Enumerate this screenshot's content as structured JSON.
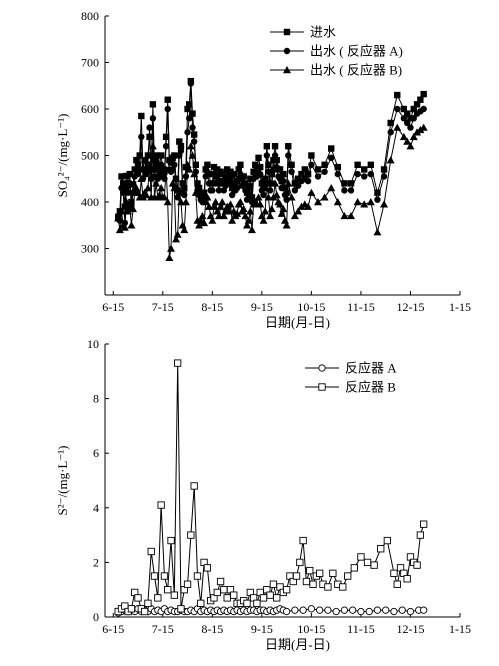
{
  "chart_data": [
    {
      "type": "line",
      "xlabel": "日期(月-日)",
      "ylabel": "SO₄²⁻/(mg·L⁻¹)",
      "ylim": [
        200,
        800
      ],
      "yticks": [
        300,
        400,
        500,
        600,
        700,
        800
      ],
      "xticks": [
        "6-15",
        "7-15",
        "8-15",
        "9-15",
        "10-15",
        "11-15",
        "12-15",
        "1-15"
      ],
      "legend_position": "top-right",
      "series": [
        {
          "name": "进水",
          "marker": "square-filled",
          "x": [
            3,
            4,
            5,
            6,
            7,
            8,
            9,
            10,
            11,
            12,
            13,
            14,
            15,
            16,
            17,
            18,
            19,
            20,
            21,
            22,
            23,
            24,
            25,
            26,
            27,
            28,
            29,
            30,
            31,
            32,
            33,
            34,
            35,
            36,
            37,
            38,
            39,
            40,
            41,
            42,
            43,
            44,
            45,
            46,
            47,
            48,
            49,
            50,
            51,
            52,
            53,
            54,
            55,
            56,
            57,
            58,
            59,
            60,
            61,
            62,
            63,
            64,
            65,
            66,
            67,
            68,
            69,
            70,
            71,
            72,
            73,
            74,
            75,
            76,
            77,
            78,
            79,
            80,
            81,
            82,
            83,
            84,
            85,
            86,
            87,
            88,
            89,
            90,
            91,
            92,
            93,
            94,
            95,
            96,
            97,
            98,
            99,
            100,
            101,
            102,
            103,
            104,
            105,
            106,
            108,
            110,
            112,
            114,
            116,
            118,
            120,
            124,
            128,
            132,
            136,
            140,
            144,
            148,
            152,
            156,
            160,
            164,
            168,
            172,
            176,
            178,
            180,
            182,
            184,
            186,
            188
          ],
          "values": [
            368,
            380,
            455,
            440,
            390,
            456,
            440,
            460,
            400,
            438,
            470,
            490,
            480,
            500,
            585,
            470,
            490,
            470,
            500,
            540,
            470,
            610,
            470,
            500,
            470,
            480,
            500,
            470,
            465,
            540,
            620,
            490,
            485,
            495,
            500,
            450,
            425,
            530,
            520,
            440,
            430,
            475,
            600,
            610,
            660,
            590,
            545,
            480,
            440,
            430,
            420,
            410,
            420,
            470,
            480,
            460,
            440,
            440,
            475,
            455,
            470,
            440,
            465,
            460,
            440,
            450,
            470,
            460,
            465,
            430,
            460,
            440,
            445,
            470,
            480,
            450,
            455,
            440,
            420,
            430,
            450,
            410,
            465,
            480,
            470,
            495,
            475,
            440,
            430,
            450,
            520,
            480,
            440,
            460,
            490,
            520,
            490,
            470,
            470,
            445,
            460,
            430,
            420,
            520,
            480,
            440,
            450,
            460,
            470,
            460,
            500,
            470,
            480,
            515,
            475,
            440,
            440,
            480,
            470,
            480,
            420,
            470,
            570,
            630,
            600,
            590,
            580,
            600,
            610,
            620,
            632
          ]
        },
        {
          "name": "出水 ( 反应器 A)",
          "marker": "circle-filled",
          "x": [
            3,
            4,
            5,
            6,
            7,
            8,
            9,
            10,
            11,
            12,
            13,
            14,
            15,
            16,
            17,
            18,
            19,
            20,
            21,
            22,
            23,
            24,
            25,
            26,
            27,
            28,
            29,
            30,
            31,
            32,
            33,
            34,
            35,
            36,
            37,
            38,
            39,
            40,
            41,
            42,
            43,
            44,
            45,
            46,
            47,
            48,
            49,
            50,
            51,
            52,
            53,
            54,
            55,
            56,
            57,
            58,
            59,
            60,
            61,
            62,
            63,
            64,
            65,
            66,
            67,
            68,
            69,
            70,
            71,
            72,
            73,
            74,
            75,
            76,
            77,
            78,
            79,
            80,
            81,
            82,
            83,
            84,
            85,
            86,
            87,
            88,
            89,
            90,
            91,
            92,
            93,
            94,
            95,
            96,
            97,
            98,
            99,
            100,
            101,
            102,
            103,
            104,
            105,
            106,
            108,
            110,
            112,
            114,
            116,
            118,
            120,
            124,
            128,
            132,
            136,
            140,
            144,
            148,
            152,
            156,
            160,
            164,
            168,
            172,
            176,
            178,
            180,
            182,
            184,
            186,
            188
          ],
          "values": [
            370,
            360,
            430,
            420,
            355,
            430,
            420,
            440,
            390,
            420,
            455,
            470,
            460,
            470,
            540,
            450,
            470,
            460,
            480,
            560,
            450,
            580,
            455,
            490,
            450,
            460,
            480,
            455,
            450,
            520,
            600,
            470,
            465,
            470,
            480,
            430,
            410,
            500,
            510,
            420,
            415,
            455,
            550,
            580,
            655,
            560,
            530,
            465,
            425,
            415,
            405,
            400,
            410,
            455,
            465,
            440,
            425,
            425,
            460,
            440,
            455,
            425,
            445,
            445,
            425,
            435,
            455,
            440,
            450,
            415,
            440,
            425,
            430,
            450,
            460,
            435,
            440,
            425,
            405,
            415,
            435,
            400,
            450,
            460,
            455,
            475,
            460,
            425,
            415,
            435,
            500,
            465,
            425,
            440,
            470,
            500,
            475,
            455,
            450,
            430,
            445,
            415,
            405,
            500,
            465,
            425,
            435,
            445,
            450,
            445,
            480,
            455,
            465,
            495,
            460,
            425,
            425,
            460,
            455,
            460,
            405,
            455,
            550,
            600,
            580,
            570,
            560,
            580,
            590,
            595,
            600
          ]
        },
        {
          "name": "出水 ( 反应器 B)",
          "marker": "triangle-filled",
          "x": [
            3,
            4,
            5,
            6,
            7,
            8,
            9,
            10,
            11,
            12,
            13,
            14,
            15,
            16,
            17,
            18,
            19,
            20,
            21,
            22,
            23,
            24,
            25,
            26,
            27,
            28,
            29,
            30,
            31,
            32,
            33,
            34,
            35,
            36,
            37,
            38,
            39,
            40,
            41,
            42,
            43,
            44,
            45,
            46,
            47,
            48,
            49,
            50,
            51,
            52,
            53,
            54,
            55,
            56,
            57,
            58,
            59,
            60,
            61,
            62,
            63,
            64,
            65,
            66,
            67,
            68,
            69,
            70,
            71,
            72,
            73,
            74,
            75,
            76,
            77,
            78,
            79,
            80,
            81,
            82,
            83,
            84,
            85,
            86,
            87,
            88,
            89,
            90,
            91,
            92,
            93,
            94,
            95,
            96,
            97,
            98,
            99,
            100,
            101,
            102,
            103,
            104,
            105,
            106,
            108,
            110,
            112,
            114,
            116,
            118,
            120,
            124,
            128,
            132,
            136,
            140,
            144,
            148,
            152,
            156,
            160,
            164,
            168,
            172,
            176,
            178,
            180,
            182,
            184,
            186,
            188
          ],
          "values": [
            365,
            340,
            380,
            350,
            345,
            400,
            380,
            390,
            350,
            385,
            420,
            430,
            420,
            410,
            450,
            410,
            420,
            415,
            430,
            480,
            410,
            520,
            410,
            440,
            410,
            415,
            430,
            410,
            410,
            470,
            400,
            280,
            300,
            440,
            430,
            320,
            330,
            420,
            400,
            350,
            340,
            400,
            480,
            470,
            520,
            500,
            460,
            420,
            360,
            350,
            360,
            370,
            355,
            400,
            410,
            390,
            370,
            360,
            390,
            400,
            380,
            370,
            390,
            400,
            370,
            380,
            390,
            380,
            395,
            360,
            380,
            370,
            375,
            395,
            400,
            380,
            385,
            370,
            350,
            360,
            380,
            340,
            395,
            400,
            395,
            410,
            395,
            370,
            360,
            380,
            440,
            410,
            370,
            385,
            410,
            440,
            415,
            400,
            395,
            375,
            385,
            360,
            350,
            440,
            410,
            370,
            380,
            390,
            395,
            390,
            420,
            400,
            410,
            430,
            400,
            370,
            370,
            400,
            395,
            400,
            335,
            395,
            490,
            560,
            540,
            530,
            520,
            540,
            550,
            555,
            560
          ]
        }
      ]
    },
    {
      "type": "line",
      "xlabel": "日期(月-日)",
      "ylabel": "S²⁻/(mg·L⁻¹)",
      "ylim": [
        0,
        10
      ],
      "yticks": [
        0,
        2,
        4,
        6,
        8,
        10
      ],
      "xticks": [
        "6-15",
        "7-15",
        "8-15",
        "9-15",
        "10-15",
        "11-15",
        "12-15",
        "1-15"
      ],
      "legend_position": "top-right",
      "series": [
        {
          "name": "反应器 A",
          "marker": "circle-open",
          "x": [
            3,
            5,
            7,
            9,
            11,
            13,
            15,
            17,
            19,
            21,
            23,
            25,
            27,
            29,
            31,
            33,
            35,
            37,
            39,
            41,
            43,
            45,
            47,
            49,
            51,
            53,
            55,
            57,
            59,
            61,
            63,
            65,
            67,
            69,
            71,
            73,
            75,
            77,
            79,
            81,
            83,
            85,
            87,
            89,
            91,
            93,
            95,
            97,
            99,
            101,
            103,
            105,
            110,
            115,
            120,
            125,
            130,
            135,
            140,
            145,
            150,
            155,
            160,
            165,
            170,
            175,
            180,
            185,
            188
          ],
          "values": [
            0.15,
            0.2,
            0.25,
            0.2,
            0.25,
            0.2,
            0.3,
            0.2,
            0.25,
            0.2,
            0.3,
            0.2,
            0.25,
            0.2,
            0.3,
            0.2,
            0.25,
            0.2,
            0.2,
            0.25,
            0.2,
            0.2,
            0.25,
            0.2,
            0.3,
            0.2,
            0.25,
            0.2,
            0.25,
            0.2,
            0.25,
            0.2,
            0.25,
            0.2,
            0.25,
            0.2,
            0.25,
            0.2,
            0.25,
            0.2,
            0.25,
            0.25,
            0.2,
            0.25,
            0.25,
            0.2,
            0.25,
            0.2,
            0.25,
            0.3,
            0.25,
            0.2,
            0.25,
            0.25,
            0.3,
            0.25,
            0.25,
            0.2,
            0.25,
            0.25,
            0.2,
            0.2,
            0.25,
            0.25,
            0.2,
            0.25,
            0.2,
            0.25,
            0.25
          ]
        },
        {
          "name": "反应器 B",
          "marker": "square-open",
          "x": [
            3,
            5,
            7,
            9,
            11,
            13,
            15,
            17,
            19,
            21,
            23,
            25,
            27,
            29,
            31,
            33,
            35,
            37,
            39,
            41,
            43,
            45,
            47,
            49,
            51,
            53,
            55,
            57,
            59,
            61,
            63,
            65,
            67,
            69,
            71,
            73,
            75,
            77,
            79,
            81,
            83,
            85,
            87,
            89,
            91,
            93,
            95,
            97,
            99,
            101,
            103,
            105,
            107,
            109,
            111,
            113,
            115,
            117,
            119,
            121,
            123,
            125,
            127,
            130,
            133,
            136,
            139,
            142,
            146,
            150,
            154,
            158,
            162,
            166,
            170,
            172,
            174,
            176,
            178,
            180,
            182,
            184,
            186,
            188
          ],
          "values": [
            0.2,
            0.3,
            0.4,
            0.2,
            0.3,
            0.9,
            0.7,
            0.3,
            0.2,
            0.5,
            2.4,
            1.5,
            0.7,
            4.1,
            1.5,
            1.0,
            2.8,
            0.8,
            9.3,
            0.3,
            1.0,
            1.2,
            3.0,
            4.8,
            1.5,
            0.5,
            2.0,
            1.8,
            0.6,
            0.7,
            0.9,
            1.3,
            1.0,
            0.7,
            1.0,
            0.8,
            0.5,
            0.5,
            0.6,
            0.5,
            0.9,
            0.7,
            0.5,
            0.9,
            0.7,
            1.0,
            0.8,
            1.2,
            0.7,
            1.1,
            0.9,
            1.0,
            1.5,
            1.3,
            1.5,
            2.0,
            2.8,
            1.3,
            1.7,
            1.2,
            1.5,
            1.6,
            1.2,
            1.1,
            1.6,
            1.2,
            1.1,
            1.5,
            1.8,
            2.2,
            2.0,
            1.9,
            2.5,
            2.8,
            1.6,
            1.2,
            1.8,
            1.6,
            1.4,
            2.2,
            2.0,
            1.9,
            3.0,
            3.4
          ]
        }
      ]
    }
  ]
}
